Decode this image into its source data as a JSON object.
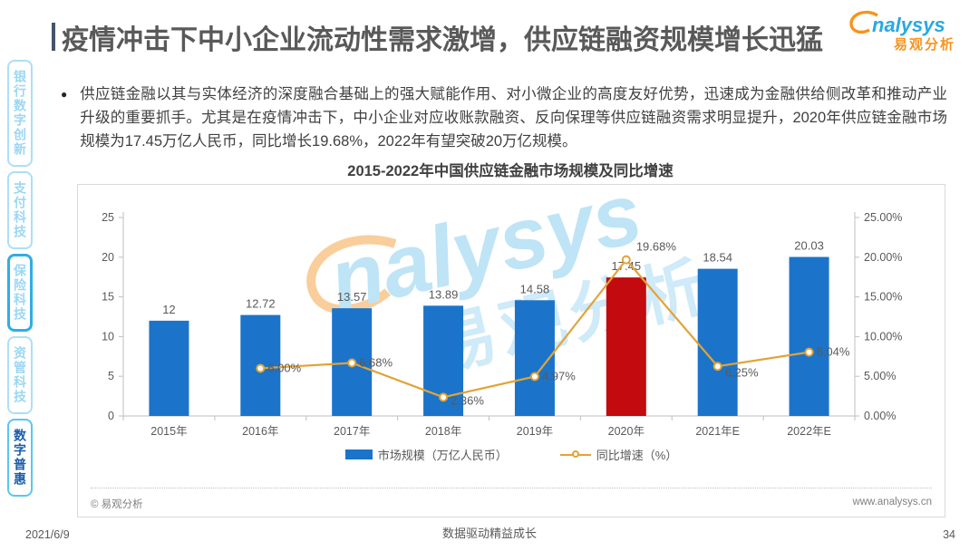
{
  "sidebar": {
    "items": [
      {
        "label": "银行数字创新",
        "state": "normal"
      },
      {
        "label": "支付科技",
        "state": "normal"
      },
      {
        "label": "保险科技",
        "state": "highlighted"
      },
      {
        "label": "资管科技",
        "state": "normal"
      },
      {
        "label": "数字普惠",
        "state": "active"
      }
    ]
  },
  "header": {
    "title": "疫情冲击下中小企业流动性需求激增，供应链融资规模增长迅猛",
    "logo_text": "nalysys",
    "logo_subtext": "易观分析"
  },
  "body": {
    "bullet": "●",
    "bullet_text": "供应链金融以其与实体经济的深度融合基础上的强大赋能作用、对小微企业的高度友好优势，迅速成为金融供给侧改革和推动产业升级的重要抓手。尤其是在疫情冲击下，中小企业对应收账款融资、反向保理等供应链融资需求明显提升，2020年供应链金融市场规模为17.45万亿人民币，同比增长19.68%，2022年有望突破20万亿规模。"
  },
  "chart_data": {
    "type": "bar+line",
    "title": "2015-2022年中国供应链金融市场规模及同比增速",
    "categories": [
      "2015年",
      "2016年",
      "2017年",
      "2018年",
      "2019年",
      "2020年",
      "2021年E",
      "2022年E"
    ],
    "series": [
      {
        "name": "市场规模（万亿人民币）",
        "type": "bar",
        "axis": "left",
        "values": [
          12,
          12.72,
          13.57,
          13.89,
          14.58,
          17.45,
          18.54,
          20.03
        ],
        "display_values": [
          "12",
          "12.72",
          "13.57",
          "13.89",
          "14.58",
          "17.45",
          "18.54",
          "20.03"
        ]
      },
      {
        "name": "同比增速（%）",
        "type": "line",
        "axis": "right",
        "values": [
          null,
          6.0,
          6.68,
          2.36,
          4.97,
          19.68,
          6.25,
          8.04
        ],
        "display_values": [
          null,
          "6.00%",
          "6.68%",
          "2.36%",
          "4.97%",
          "19.68%",
          "6.25%",
          "8.04%"
        ]
      }
    ],
    "left_axis": {
      "min": 0,
      "max": 25,
      "ticks": [
        "0",
        "5",
        "10",
        "15",
        "20",
        "25"
      ]
    },
    "right_axis": {
      "min": 0,
      "max": 25,
      "ticks": [
        "0.00%",
        "5.00%",
        "10.00%",
        "15.00%",
        "20.00%",
        "25.00%"
      ]
    },
    "bar_color": "#1B74C9",
    "highlight_bar_color": "#C20A0F",
    "highlight_index": 5,
    "line_color": "#E2A338",
    "grid": "off",
    "legend_position": "bottom",
    "watermark_text": "nalysys",
    "watermark_subtext": "易观分析",
    "source_note": "© 易观分析",
    "source_url": "www.analysys.cn"
  },
  "footer": {
    "date": "2021/6/9",
    "tagline": "数据驱动精益成长",
    "page": "34"
  }
}
